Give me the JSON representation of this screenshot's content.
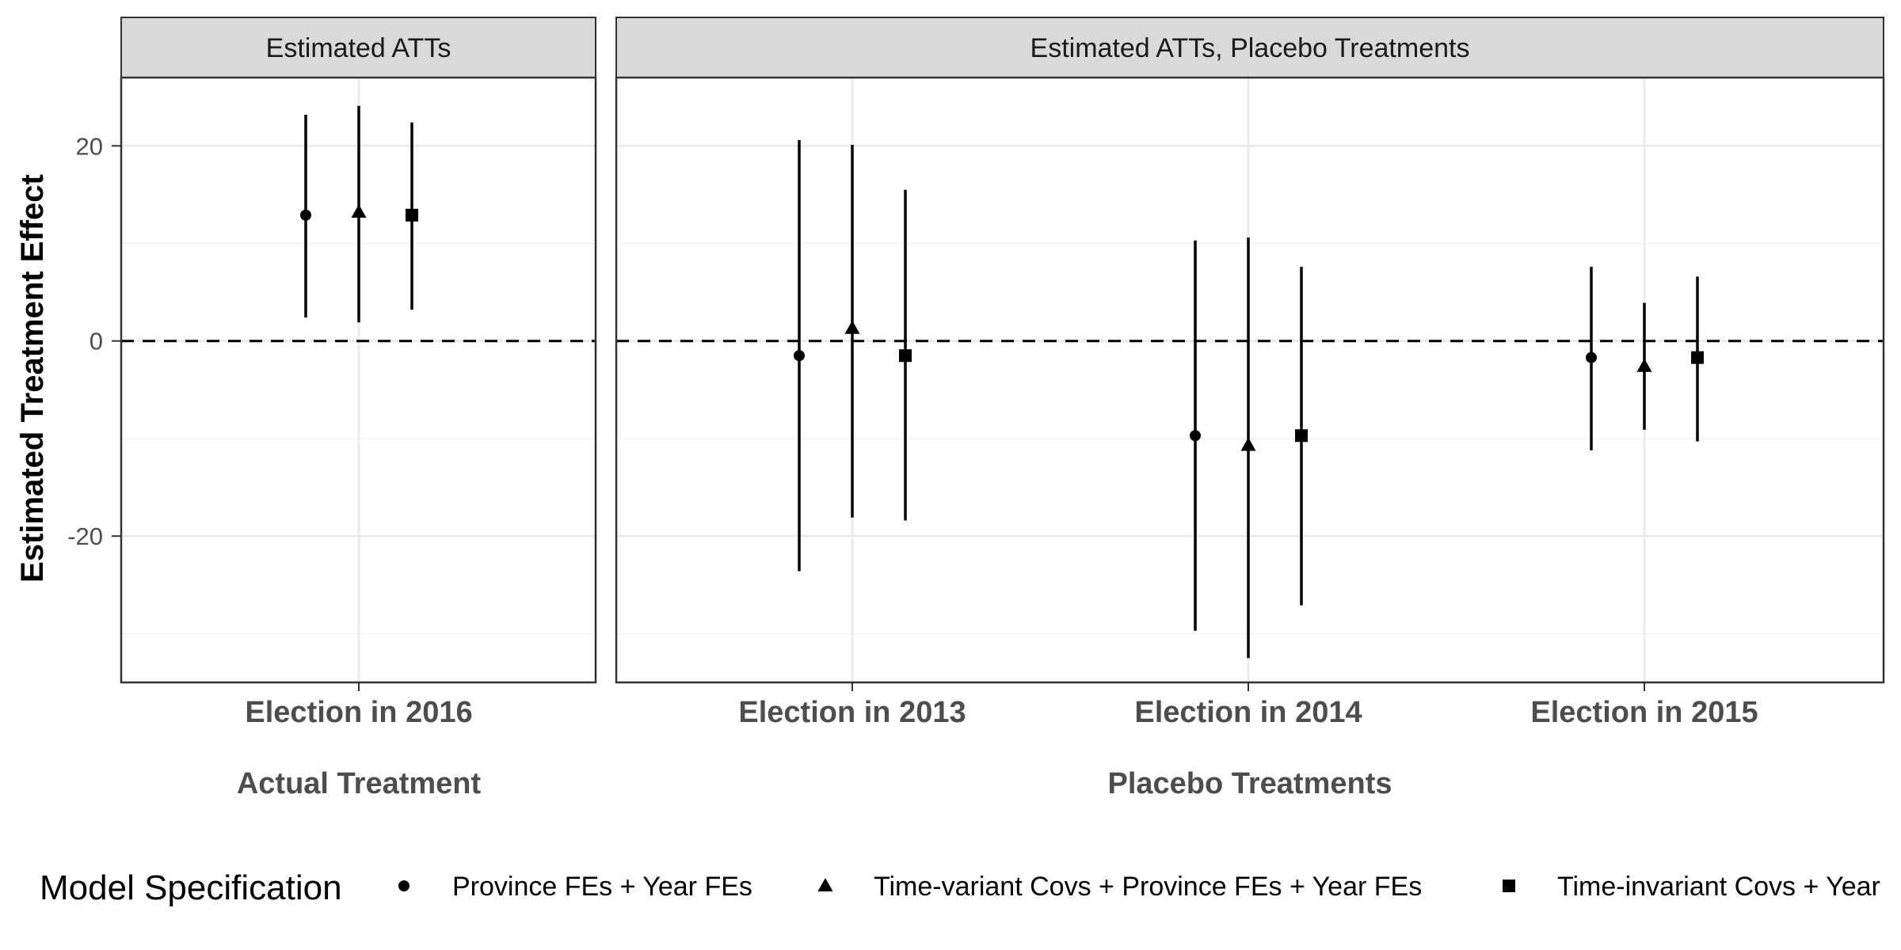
{
  "chart_data": {
    "type": "scatter",
    "title": "",
    "ylabel": "Estimated Treatment Effect",
    "ylim": [
      -35,
      27
    ],
    "yticks": [
      -20,
      0,
      20
    ],
    "ytick_labels": [
      "-20",
      "0",
      "20"
    ],
    "reference_line": {
      "y": 0,
      "style": "dashed"
    },
    "grid": true,
    "legend": {
      "title": "Model Specification",
      "position": "bottom",
      "entries": [
        {
          "label": "Province FEs + Year FEs",
          "shape": "circle"
        },
        {
          "label": "Time-variant Covs + Province FEs + Year FEs",
          "shape": "triangle"
        },
        {
          "label": "Time-invariant Covs + Year",
          "shape": "square"
        }
      ]
    },
    "panels": [
      {
        "strip": "Estimated ATTs",
        "xlabel": "Actual Treatment",
        "categories": [
          "Election in 2016"
        ],
        "series": [
          {
            "shape": "circle",
            "estimate": [
              12.9
            ],
            "lower": [
              2.4
            ],
            "upper": [
              23.2
            ]
          },
          {
            "shape": "triangle",
            "estimate": [
              13.2
            ],
            "lower": [
              1.9
            ],
            "upper": [
              24.1
            ]
          },
          {
            "shape": "square",
            "estimate": [
              12.9
            ],
            "lower": [
              3.2
            ],
            "upper": [
              22.4
            ]
          }
        ]
      },
      {
        "strip": "Estimated ATTs, Placebo Treatments",
        "xlabel": "Placebo Treatments",
        "categories": [
          "Election in 2013",
          "Election in 2014",
          "Election in 2015"
        ],
        "series": [
          {
            "shape": "circle",
            "estimate": [
              -1.5,
              -9.7,
              -1.7
            ],
            "lower": [
              -23.6,
              -29.7,
              -11.2
            ],
            "upper": [
              20.6,
              10.3,
              7.6
            ]
          },
          {
            "shape": "triangle",
            "estimate": [
              1.3,
              -10.7,
              -2.6
            ],
            "lower": [
              -18.1,
              -32.5,
              -9.1
            ],
            "upper": [
              20.1,
              10.6,
              3.9
            ]
          },
          {
            "shape": "square",
            "estimate": [
              -1.5,
              -9.7,
              -1.7
            ],
            "lower": [
              -18.4,
              -27.1,
              -10.3
            ],
            "upper": [
              15.5,
              7.6,
              6.6
            ]
          }
        ]
      }
    ]
  }
}
